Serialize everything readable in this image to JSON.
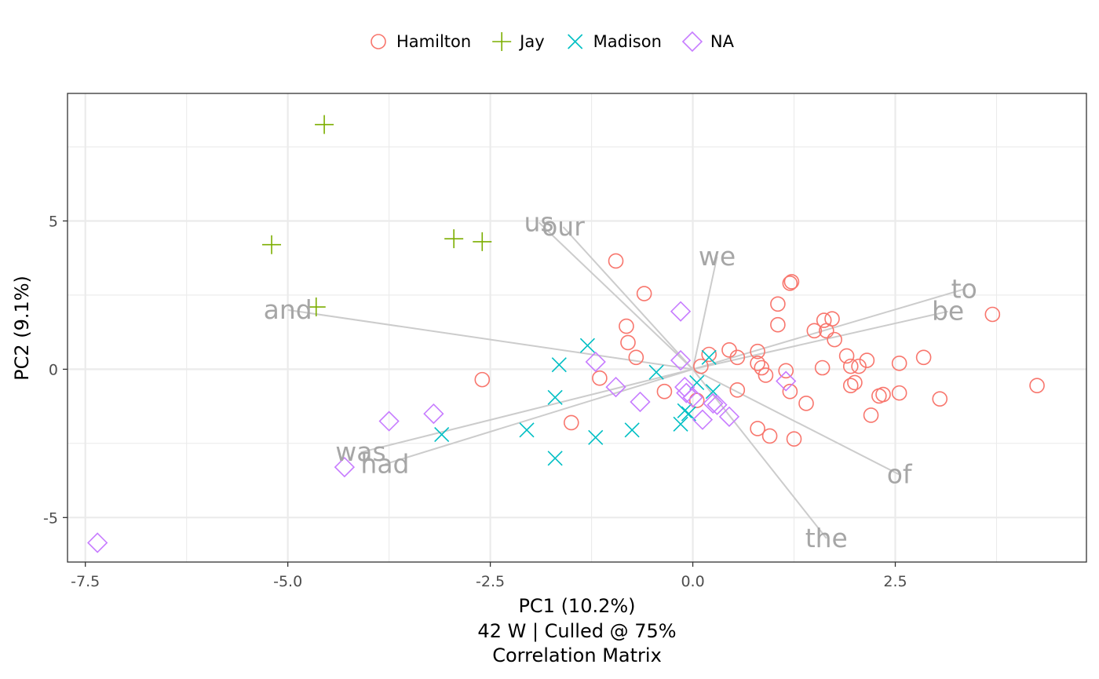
{
  "chart_data": {
    "type": "scatter",
    "xlabel": "PC1 (10.2%)",
    "ylabel": "PC2 (9.1%)",
    "caption_lines": [
      "42 W | Culled @ 75%",
      "Correlation Matrix"
    ],
    "xlim": [
      -7.72,
      4.86
    ],
    "ylim": [
      -6.5,
      9.3
    ],
    "x_ticks": [
      -7.5,
      -5.0,
      -2.5,
      0.0,
      2.5
    ],
    "x_tick_labels": [
      "-7.5",
      "-5.0",
      "-2.5",
      "0.0",
      "2.5"
    ],
    "y_ticks": [
      -5,
      0,
      5
    ],
    "y_tick_labels": [
      "-5",
      "0",
      "5"
    ],
    "grid": true,
    "legend_position": "top",
    "series": [
      {
        "name": "Hamilton",
        "marker": "circle",
        "color": "#F8766D",
        "points": [
          [
            -0.95,
            3.65
          ],
          [
            -0.6,
            2.55
          ],
          [
            -0.82,
            1.45
          ],
          [
            -0.8,
            0.9
          ],
          [
            -0.7,
            0.4
          ],
          [
            -2.6,
            -0.35
          ],
          [
            -1.15,
            -0.3
          ],
          [
            -1.5,
            -1.8
          ],
          [
            -0.35,
            -0.75
          ],
          [
            0.1,
            0.1
          ],
          [
            0.2,
            0.5
          ],
          [
            0.45,
            0.65
          ],
          [
            0.55,
            0.4
          ],
          [
            0.8,
            0.6
          ],
          [
            0.8,
            0.2
          ],
          [
            0.85,
            0.05
          ],
          [
            0.9,
            -0.2
          ],
          [
            0.05,
            -1.05
          ],
          [
            0.55,
            -0.7
          ],
          [
            0.8,
            -2.0
          ],
          [
            0.95,
            -2.25
          ],
          [
            1.25,
            -2.35
          ],
          [
            1.05,
            2.2
          ],
          [
            1.2,
            2.9
          ],
          [
            1.22,
            2.95
          ],
          [
            1.05,
            1.5
          ],
          [
            1.15,
            -0.05
          ],
          [
            1.2,
            -0.75
          ],
          [
            1.4,
            -1.15
          ],
          [
            1.5,
            1.3
          ],
          [
            1.6,
            0.05
          ],
          [
            1.62,
            1.65
          ],
          [
            1.65,
            1.3
          ],
          [
            1.72,
            1.7
          ],
          [
            1.75,
            1.0
          ],
          [
            1.9,
            0.45
          ],
          [
            1.95,
            0.1
          ],
          [
            1.95,
            -0.55
          ],
          [
            2.0,
            -0.45
          ],
          [
            2.05,
            0.1
          ],
          [
            2.15,
            0.3
          ],
          [
            2.2,
            -1.55
          ],
          [
            2.3,
            -0.9
          ],
          [
            2.35,
            -0.85
          ],
          [
            2.55,
            0.2
          ],
          [
            2.55,
            -0.8
          ],
          [
            2.85,
            0.4
          ],
          [
            3.05,
            -1.0
          ],
          [
            3.7,
            1.85
          ],
          [
            4.25,
            -0.55
          ]
        ]
      },
      {
        "name": "Jay",
        "marker": "plus",
        "color": "#7CAE00",
        "points": [
          [
            -4.55,
            8.25
          ],
          [
            -5.2,
            4.2
          ],
          [
            -2.95,
            4.4
          ],
          [
            -2.6,
            4.3
          ],
          [
            -4.65,
            2.1
          ]
        ]
      },
      {
        "name": "Madison",
        "marker": "x",
        "color": "#00BFC4",
        "points": [
          [
            -1.3,
            0.8
          ],
          [
            -1.65,
            0.15
          ],
          [
            -1.7,
            -0.95
          ],
          [
            -1.7,
            -3.0
          ],
          [
            -2.05,
            -2.05
          ],
          [
            -3.1,
            -2.2
          ],
          [
            -1.2,
            -2.3
          ],
          [
            -0.75,
            -2.05
          ],
          [
            -0.45,
            -0.1
          ],
          [
            0.2,
            0.4
          ],
          [
            -0.05,
            -1.5
          ],
          [
            -0.1,
            -1.4
          ],
          [
            -0.15,
            -1.85
          ],
          [
            0.25,
            -0.75
          ],
          [
            0.05,
            -0.45
          ]
        ]
      },
      {
        "name": "NA",
        "marker": "diamond",
        "color": "#C77CFF",
        "points": [
          [
            -7.35,
            -5.85
          ],
          [
            -4.3,
            -3.3
          ],
          [
            -3.75,
            -1.75
          ],
          [
            -3.2,
            -1.5
          ],
          [
            -1.2,
            0.25
          ],
          [
            -0.95,
            -0.6
          ],
          [
            -0.65,
            -1.1
          ],
          [
            -0.15,
            1.95
          ],
          [
            -0.15,
            0.3
          ],
          [
            -0.1,
            -0.6
          ],
          [
            -0.08,
            -0.8
          ],
          [
            0.0,
            -0.95
          ],
          [
            0.12,
            -1.7
          ],
          [
            0.25,
            -1.15
          ],
          [
            0.3,
            -1.2
          ],
          [
            0.45,
            -1.6
          ],
          [
            1.15,
            -0.4
          ]
        ]
      }
    ],
    "loadings": [
      {
        "label": "us",
        "end": [
          -1.9,
          4.95
        ]
      },
      {
        "label": "our",
        "end": [
          -1.6,
          4.8
        ]
      },
      {
        "label": "we",
        "end": [
          0.3,
          3.8
        ]
      },
      {
        "label": "and",
        "end": [
          -5.0,
          2.0
        ]
      },
      {
        "label": "to",
        "end": [
          3.35,
          2.7
        ]
      },
      {
        "label": "be",
        "end": [
          3.15,
          1.95
        ]
      },
      {
        "label": "was",
        "end": [
          -4.1,
          -2.8
        ]
      },
      {
        "label": "had",
        "end": [
          -3.8,
          -3.2
        ]
      },
      {
        "label": "of",
        "end": [
          2.55,
          -3.55
        ]
      },
      {
        "label": "the",
        "end": [
          1.65,
          -5.7
        ]
      }
    ]
  }
}
